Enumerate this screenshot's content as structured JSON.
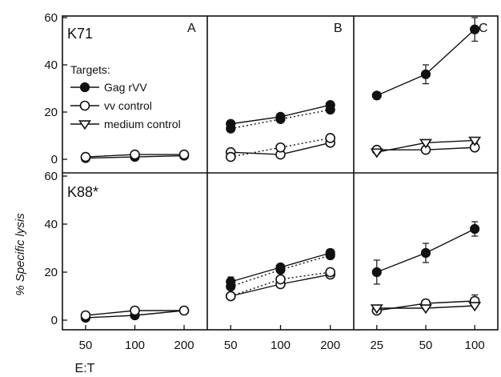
{
  "chart_data": {
    "type": "line",
    "xlabel": "E:T",
    "ylabel": "% Specific lysis",
    "ylim": [
      0,
      60
    ],
    "yticks": [
      "0",
      "20",
      "40",
      "60"
    ],
    "legend": {
      "title": "Targets:",
      "placement": "inside panel A (top-left)",
      "entries": [
        {
          "name": "Gag rVV",
          "marker": "filled-circle"
        },
        {
          "name": "vv control",
          "marker": "open-circle"
        },
        {
          "name": "medium control",
          "marker": "open-triangle-down"
        }
      ]
    },
    "row_labels": [
      "K71",
      "K88*"
    ],
    "panel_letters": [
      "A",
      "B",
      "C"
    ],
    "panels": [
      {
        "id": "K71-A",
        "row": 0,
        "col": 0,
        "x": [
          50,
          100,
          200
        ],
        "series": [
          {
            "name": "Gag rVV",
            "marker": "filled-circle",
            "style": "solid",
            "values": [
              0.5,
              1,
              1.5
            ]
          },
          {
            "name": "vv control",
            "marker": "open-circle",
            "style": "solid",
            "values": [
              1,
              2,
              2
            ]
          }
        ]
      },
      {
        "id": "K71-B",
        "row": 0,
        "col": 1,
        "x": [
          50,
          100,
          200
        ],
        "series": [
          {
            "name": "Gag rVV",
            "marker": "filled-circle",
            "style": "solid",
            "values": [
              15,
              18,
              23
            ]
          },
          {
            "name": "Gag rVV",
            "marker": "filled-circle",
            "style": "dotted",
            "values": [
              13,
              17,
              21
            ]
          },
          {
            "name": "vv control",
            "marker": "open-circle",
            "style": "solid",
            "values": [
              3,
              2,
              7
            ]
          },
          {
            "name": "vv control",
            "marker": "open-circle",
            "style": "dotted",
            "values": [
              1,
              5,
              9
            ]
          }
        ]
      },
      {
        "id": "K71-C",
        "row": 0,
        "col": 2,
        "x": [
          25,
          50,
          100
        ],
        "series": [
          {
            "name": "Gag rVV",
            "marker": "filled-circle",
            "style": "solid",
            "values": [
              27,
              36,
              55
            ],
            "errors": [
              1.5,
              4,
              5
            ]
          },
          {
            "name": "vv control",
            "marker": "open-circle",
            "style": "solid",
            "values": [
              4,
              4,
              5
            ],
            "errors": [
              0.5,
              0.5,
              1.5
            ]
          },
          {
            "name": "medium control",
            "marker": "open-triangle-down",
            "style": "solid",
            "values": [
              3,
              7,
              8
            ],
            "errors": [
              0.5,
              0.5,
              1
            ]
          }
        ]
      },
      {
        "id": "K88-A",
        "row": 1,
        "col": 0,
        "x": [
          50,
          100,
          200
        ],
        "series": [
          {
            "name": "Gag rVV",
            "marker": "filled-circle",
            "style": "solid",
            "values": [
              1,
              2,
              4
            ]
          },
          {
            "name": "vv control",
            "marker": "open-circle",
            "style": "solid",
            "values": [
              2,
              4,
              4
            ]
          }
        ]
      },
      {
        "id": "K88-B",
        "row": 1,
        "col": 1,
        "x": [
          50,
          100,
          200
        ],
        "series": [
          {
            "name": "Gag rVV",
            "marker": "filled-circle",
            "style": "solid",
            "values": [
              16,
              22,
              28
            ],
            "errors": [
              2,
              1,
              1.5
            ]
          },
          {
            "name": "Gag rVV",
            "marker": "filled-circle",
            "style": "dotted",
            "values": [
              14,
              21,
              27
            ],
            "errors": [
              1,
              1,
              1
            ]
          },
          {
            "name": "vv control",
            "marker": "open-circle",
            "style": "solid",
            "values": [
              10,
              15,
              19
            ],
            "errors": [
              1,
              1,
              1.5
            ]
          },
          {
            "name": "vv control",
            "marker": "open-circle",
            "style": "dotted",
            "values": [
              10,
              17,
              20
            ],
            "errors": [
              1,
              1,
              1
            ]
          }
        ]
      },
      {
        "id": "K88-C",
        "row": 1,
        "col": 2,
        "x": [
          25,
          50,
          100
        ],
        "series": [
          {
            "name": "Gag rVV",
            "marker": "filled-circle",
            "style": "solid",
            "values": [
              20,
              28,
              38
            ],
            "errors": [
              5,
              4,
              3
            ]
          },
          {
            "name": "vv control",
            "marker": "open-circle",
            "style": "solid",
            "values": [
              4,
              7,
              8
            ],
            "errors": [
              0.5,
              1.5,
              2.5
            ]
          },
          {
            "name": "medium control",
            "marker": "open-triangle-down",
            "style": "solid",
            "values": [
              5,
              5,
              6
            ],
            "errors": [
              0.5,
              0.5,
              0.5
            ]
          }
        ]
      }
    ]
  }
}
